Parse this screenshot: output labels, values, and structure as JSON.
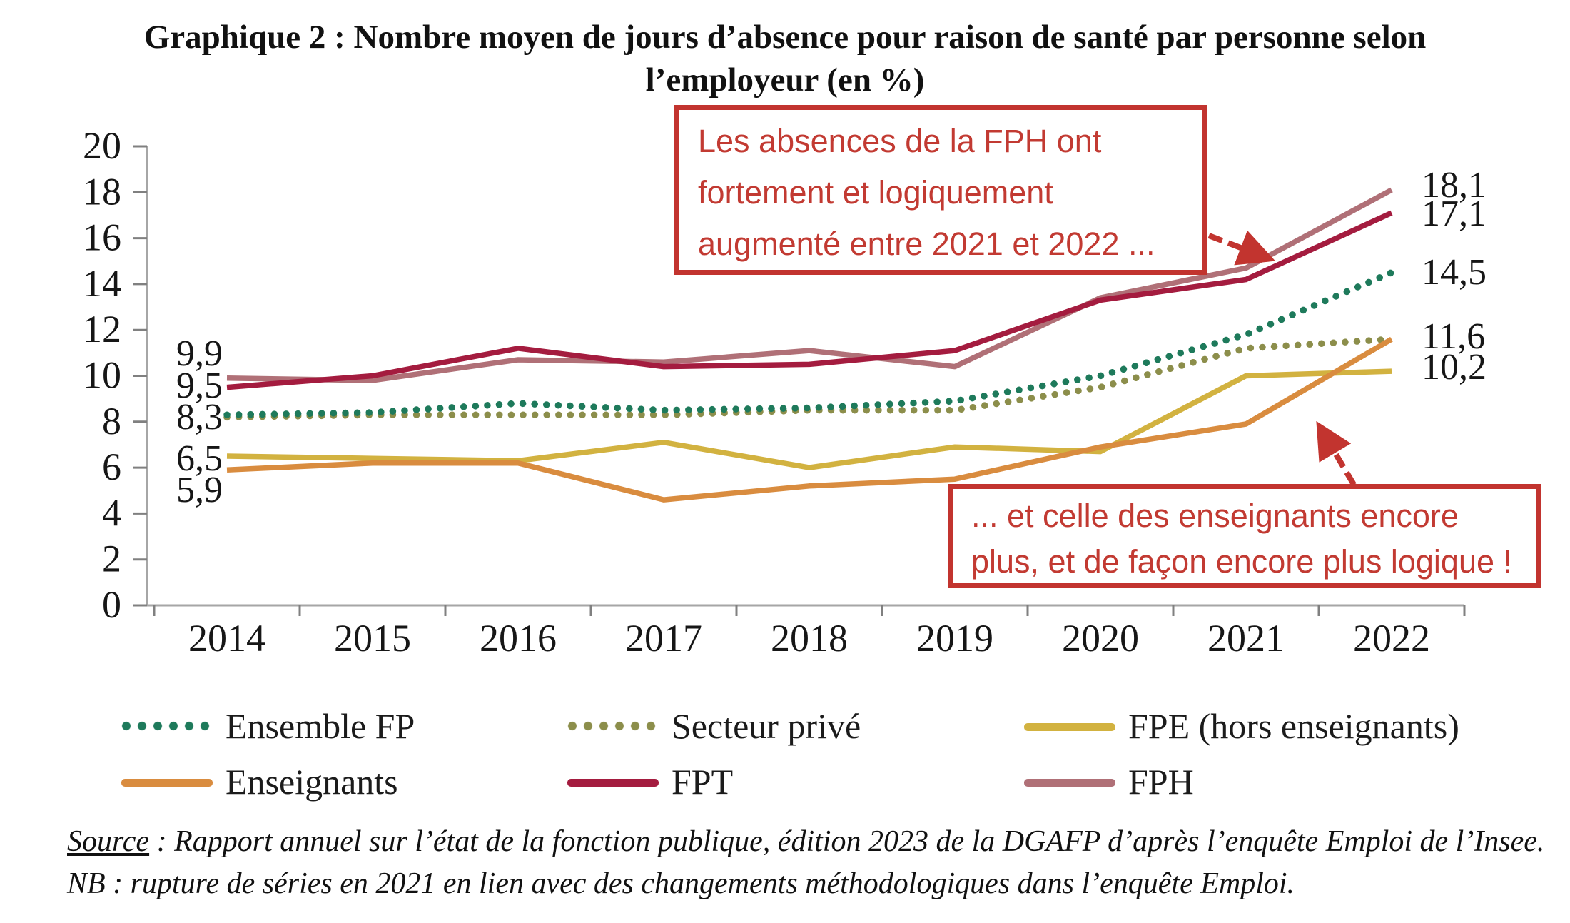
{
  "page": {
    "title_line1": "Graphique 2 : Nombre moyen de jours d’absence pour raison de santé par personne selon",
    "title_line2": "l’employeur (en %)",
    "source_label": "Source",
    "source_rest": " : Rapport annuel sur l’état de la fonction publique, édition 2023 de la DGAFP d’après l’enquête Emploi de l’Insee.",
    "nb_line": "NB : rupture de séries en 2021 en lien avec des changements méthodologiques dans l’enquête Emploi."
  },
  "annotations": {
    "accent_red": "#C2342F",
    "box1": {
      "lines": [
        "Les absences de la FPH ont",
        "fortement et logiquement",
        "augmenté entre 2021 et 2022 ..."
      ]
    },
    "box2": {
      "lines": [
        "... et celle des enseignants encore",
        "plus, et de façon encore plus logique !"
      ]
    }
  },
  "chart_data": {
    "type": "line",
    "title": "Nombre moyen de jours d'absence pour raison de santé par personne selon l'employeur (en %)",
    "categories": [
      "2014",
      "2015",
      "2016",
      "2017",
      "2018",
      "2019",
      "2020",
      "2021",
      "2022"
    ],
    "series": [
      {
        "name": "Ensemble FP",
        "style": "dotted",
        "color": "#1E7A5B",
        "values": [
          8.3,
          8.4,
          8.8,
          8.5,
          8.6,
          8.9,
          10.0,
          11.8,
          14.5
        ]
      },
      {
        "name": "Secteur privé",
        "style": "dotted",
        "color": "#8C8E4B",
        "values": [
          8.2,
          8.3,
          8.3,
          8.3,
          8.5,
          8.5,
          9.5,
          11.2,
          11.6
        ]
      },
      {
        "name": "FPE (hors enseignants)",
        "style": "solid",
        "color": "#D2B240",
        "values": [
          6.5,
          6.4,
          6.3,
          7.1,
          6.0,
          6.9,
          6.7,
          10.0,
          10.2
        ]
      },
      {
        "name": "Enseignants",
        "style": "solid",
        "color": "#D98C3F",
        "values": [
          5.9,
          6.2,
          6.2,
          4.6,
          5.2,
          5.5,
          6.9,
          7.9,
          11.6
        ]
      },
      {
        "name": "FPT",
        "style": "solid",
        "color": "#A41C3F",
        "values": [
          9.5,
          10.0,
          11.2,
          10.4,
          10.5,
          11.1,
          13.3,
          14.2,
          17.1
        ]
      },
      {
        "name": "FPH",
        "style": "solid",
        "color": "#B07077",
        "values": [
          9.9,
          9.8,
          10.7,
          10.6,
          11.1,
          10.4,
          13.4,
          14.7,
          18.1
        ]
      }
    ],
    "ylim": [
      0,
      20
    ],
    "ytick_step": 2,
    "grid": false,
    "legend_position": "bottom",
    "left_value_labels": [
      "9,9",
      "9,5",
      "8,3",
      "6,5",
      "5,9"
    ],
    "right_value_labels": [
      "18,1",
      "17,1",
      "14,5",
      "11,6",
      "10,2"
    ]
  }
}
